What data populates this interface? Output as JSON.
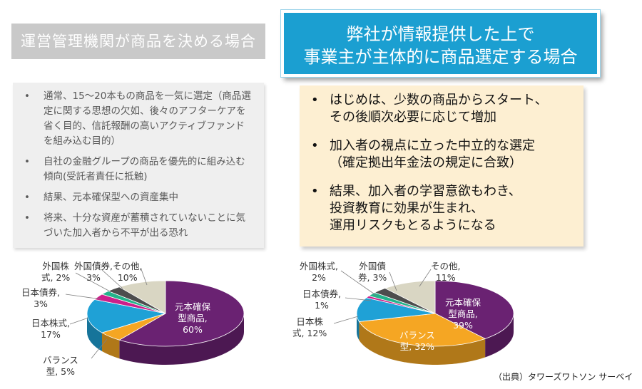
{
  "left_heading": "運営管理機関が商品を決める場合",
  "right_heading": {
    "line1": "弊社が情報提供した上で",
    "line2": "事業主が主体的に商品選定する場合"
  },
  "left_bullets": [
    "通常、15～20本もの商品を一気に選定（商品選定に関する思想の欠如、後々のアフターケアを省く目的、信託報酬の高いアクティブファンドを組み込む目的）",
    "自社の金融グループの商品を優先的に組み込む傾向(受託者責任に抵触)",
    "結果、元本確保型への資産集中",
    "将来、十分な資産が蓄積されていないことに気づいた加入者から不平が出る恐れ"
  ],
  "right_bullets": [
    "はじめは、少数の商品からスタート、\nその後順次必要に応じて増加",
    "加入者の視点に立った中立的な選定\n（確定拠出年金法の規定に合致）",
    "結果、加入者の学習意欲もわき、\n投資教育に効果が生まれ、\n運用リスクもとるようになる"
  ],
  "source": "（出典）タワーズワトソン サーベイ",
  "colors": {
    "principal": "#6a2272",
    "balance": "#f5a623",
    "domestic_stock": "#1fa1d6",
    "domestic_bond": "#cc1f8a",
    "foreign_stock": "#23b38a",
    "foreign_bond": "#4d4d4d",
    "other": "#d9d6c3"
  },
  "chart_data": [
    {
      "type": "pie",
      "series": [
        {
          "label": "元本確保\n型商品,\n60%",
          "value": 60,
          "color_key": "principal"
        },
        {
          "label": "バランス\n型, 5%",
          "value": 5,
          "color_key": "balance"
        },
        {
          "label": "日本株式,\n17%",
          "value": 17,
          "color_key": "domestic_stock"
        },
        {
          "label": "日本債券,\n3%",
          "value": 3,
          "color_key": "domestic_bond"
        },
        {
          "label": "外国株\n式, 2%",
          "value": 2,
          "color_key": "foreign_stock"
        },
        {
          "label": "外国債券,\n3%",
          "value": 3,
          "color_key": "foreign_bond"
        },
        {
          "label": "その他,\n10%",
          "value": 10,
          "color_key": "other"
        }
      ]
    },
    {
      "type": "pie",
      "series": [
        {
          "label": "元本確保\n型商品,\n39%",
          "value": 39,
          "color_key": "principal"
        },
        {
          "label": "バランス\n型, 32%",
          "value": 32,
          "color_key": "balance"
        },
        {
          "label": "日本株\n式, 12%",
          "value": 12,
          "color_key": "domestic_stock"
        },
        {
          "label": "日本債券,\n1%",
          "value": 1,
          "color_key": "domestic_bond"
        },
        {
          "label": "外国株式,\n2%",
          "value": 2,
          "color_key": "foreign_stock"
        },
        {
          "label": "外国債\n券, 3%",
          "value": 3,
          "color_key": "foreign_bond"
        },
        {
          "label": "その他,\n11%",
          "value": 11,
          "color_key": "other"
        }
      ]
    }
  ]
}
